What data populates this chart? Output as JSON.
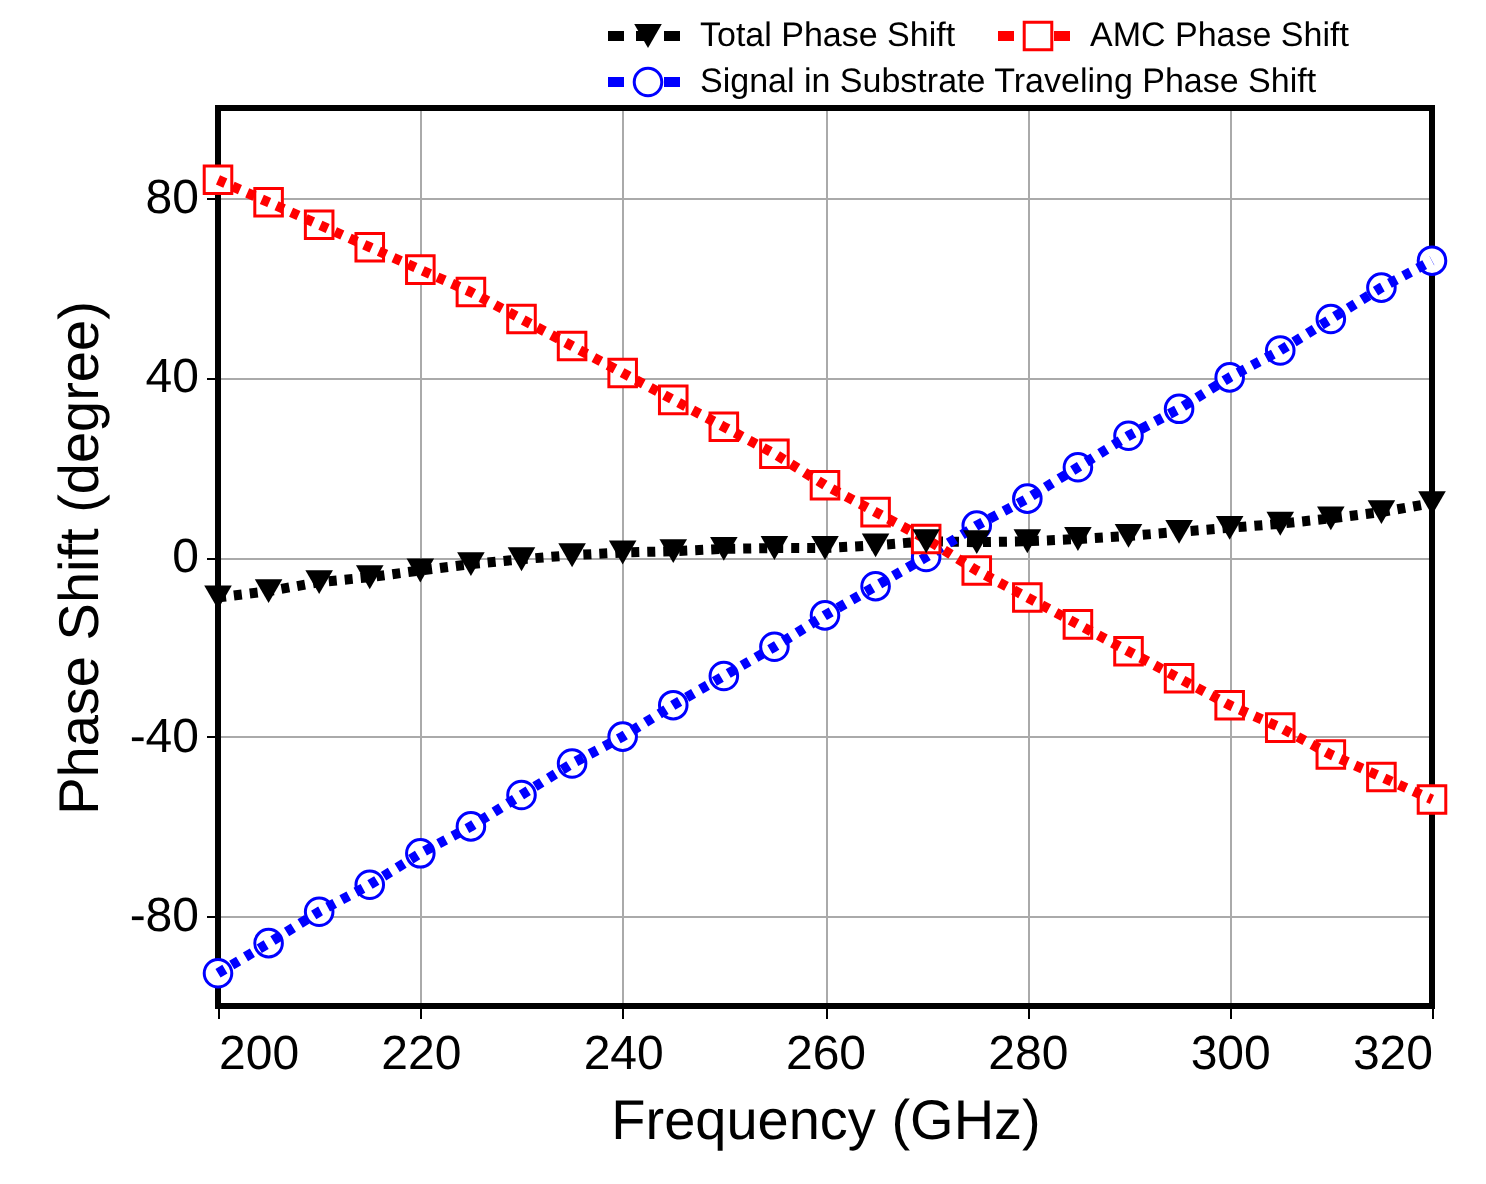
{
  "chart_data": {
    "type": "line",
    "xlabel": "Frequency (GHz)",
    "ylabel": "Phase Shift (degree)",
    "x": [
      200,
      205,
      210,
      215,
      220,
      225,
      230,
      235,
      240,
      245,
      250,
      255,
      260,
      265,
      270,
      275,
      280,
      285,
      290,
      295,
      300,
      305,
      310,
      315,
      320
    ],
    "series": [
      {
        "name": "Total Phase Shift",
        "color": "#000000",
        "marker": "triangle",
        "values": [
          -9,
          -7.6,
          -5.6,
          -4.5,
          -3,
          -1.6,
          -0.5,
          0.4,
          1,
          1.3,
          1.8,
          2,
          2,
          2.6,
          3.5,
          3.3,
          3.5,
          4,
          4.7,
          5.6,
          6.5,
          7.4,
          8.6,
          10,
          12
        ]
      },
      {
        "name": "AMC Phase Shift",
        "color": "#ff0000",
        "marker": "square",
        "values": [
          84,
          79,
          74,
          69,
          64,
          59,
          53,
          47,
          41,
          35,
          29,
          23,
          16,
          10,
          4,
          -3,
          -9,
          -15,
          -21,
          -27,
          -33,
          -38,
          -44,
          -49,
          -54
        ]
      },
      {
        "name": "Signal in Substrate Traveling Phase Shift",
        "color": "#0000ff",
        "marker": "circle",
        "values": [
          -92.7,
          -86,
          -79,
          -73,
          -66,
          -60,
          -53,
          -46,
          -40,
          -33,
          -26.5,
          -20,
          -13,
          -6.5,
          0,
          7,
          13,
          20,
          27,
          33,
          40,
          46,
          53,
          60,
          66
        ]
      }
    ],
    "xlim": [
      200,
      320
    ],
    "xticks": [
      200,
      220,
      240,
      260,
      280,
      300,
      320
    ],
    "ylim": [
      -100,
      100
    ],
    "yticks": [
      -80,
      -40,
      0,
      40,
      80
    ],
    "grid": true,
    "legend": "top right",
    "line_style": "dotted"
  }
}
